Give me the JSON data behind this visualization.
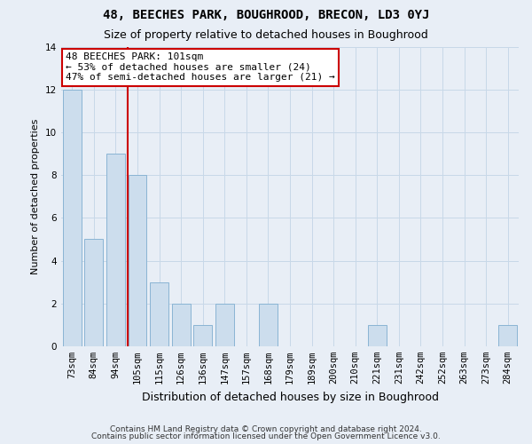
{
  "title": "48, BEECHES PARK, BOUGHROOD, BRECON, LD3 0YJ",
  "subtitle": "Size of property relative to detached houses in Boughrood",
  "xlabel": "Distribution of detached houses by size in Boughrood",
  "ylabel": "Number of detached properties",
  "categories": [
    "73sqm",
    "84sqm",
    "94sqm",
    "105sqm",
    "115sqm",
    "126sqm",
    "136sqm",
    "147sqm",
    "157sqm",
    "168sqm",
    "179sqm",
    "189sqm",
    "200sqm",
    "210sqm",
    "221sqm",
    "231sqm",
    "242sqm",
    "252sqm",
    "263sqm",
    "273sqm",
    "284sqm"
  ],
  "values": [
    12,
    5,
    9,
    8,
    3,
    2,
    1,
    2,
    0,
    2,
    0,
    0,
    0,
    0,
    1,
    0,
    0,
    0,
    0,
    0,
    1
  ],
  "bar_color": "#ccdded",
  "bar_edge_color": "#8ab4d4",
  "grid_color": "#c8d8e8",
  "background_color": "#e8eef6",
  "axes_background": "#e8eef6",
  "redline_x": 2.55,
  "annotation_text": "48 BEECHES PARK: 101sqm\n← 53% of detached houses are smaller (24)\n47% of semi-detached houses are larger (21) →",
  "annotation_box_color": "#ffffff",
  "annotation_box_edge": "#cc0000",
  "redline_color": "#cc0000",
  "ylim": [
    0,
    14
  ],
  "yticks": [
    0,
    2,
    4,
    6,
    8,
    10,
    12,
    14
  ],
  "footer1": "Contains HM Land Registry data © Crown copyright and database right 2024.",
  "footer2": "Contains public sector information licensed under the Open Government Licence v3.0.",
  "title_fontsize": 10,
  "subtitle_fontsize": 9,
  "xlabel_fontsize": 9,
  "ylabel_fontsize": 8,
  "tick_fontsize": 7.5,
  "annotation_fontsize": 8,
  "footer_fontsize": 6.5
}
